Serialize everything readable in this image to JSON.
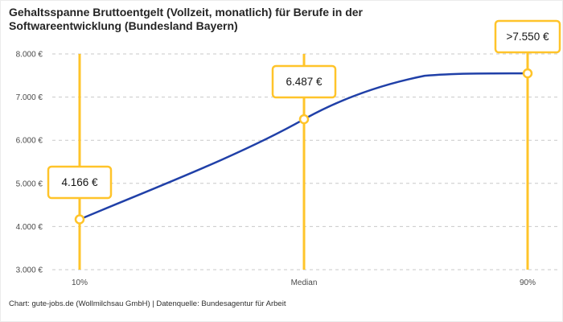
{
  "header": {
    "title_line1": "Gehaltsspanne Bruttoentgelt (Vollzeit, monatlich) für Berufe in der",
    "title_line2": "Softwareentwicklung (Bundesland Bayern)"
  },
  "footer": {
    "source": "Chart: gute-jobs.de (Wollmilchsau GmbH) | Datenquelle: Bundesagentur für Arbeit"
  },
  "chart_data": {
    "type": "line",
    "title": "Gehaltsspanne Bruttoentgelt (Vollzeit, monatlich) für Berufe in der Softwareentwicklung (Bundesland Bayern)",
    "categories": [
      "10%",
      "Median",
      "90%"
    ],
    "values": [
      4166,
      6487,
      7550
    ],
    "point_labels": [
      "4.166 €",
      "6.487 €",
      ">7.550 €"
    ],
    "ylim": [
      3000,
      8000
    ],
    "yticks": [
      3000,
      4000,
      5000,
      6000,
      7000,
      8000
    ],
    "ytick_labels": [
      "3.000 €",
      "4.000 €",
      "5.000 €",
      "6.000 €",
      "7.000 €",
      "8.000 €"
    ],
    "xlabel": "",
    "ylabel": "",
    "grid": "horizontal-dashed",
    "legend": "none",
    "colors": {
      "line": "#2040A8",
      "accent": "#FFC42A",
      "grid": "#C9C9C9",
      "title_text": "#252525",
      "axis_text": "#4A4A4A",
      "label_text": "#141414",
      "background": "#FFFFFF"
    }
  }
}
